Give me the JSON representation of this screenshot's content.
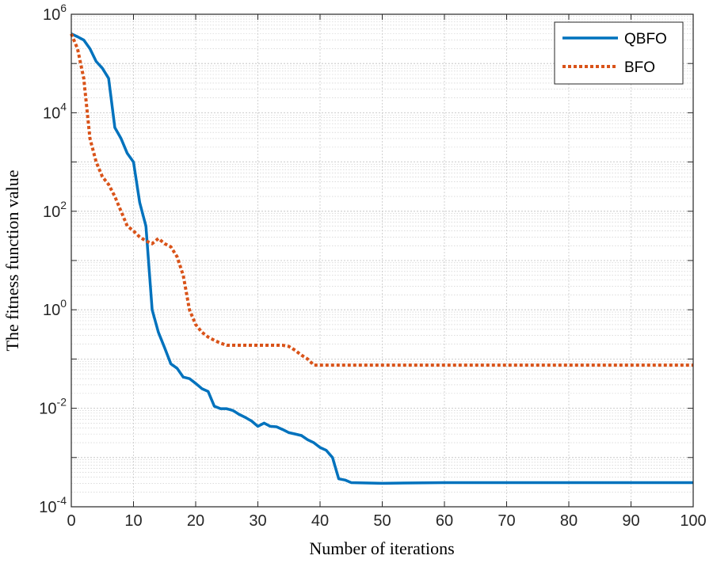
{
  "chart_data": {
    "type": "line",
    "title": "",
    "xlabel": "Number of iterations",
    "ylabel": "The fitness function value",
    "xlim": [
      0,
      100
    ],
    "ylim": [
      0.0001,
      1000000
    ],
    "yscale": "log",
    "grid": true,
    "minor_grid": true,
    "legend_position": "top-right",
    "x_ticks": [
      0,
      10,
      20,
      30,
      40,
      50,
      60,
      70,
      80,
      90,
      100
    ],
    "y_ticks": [
      {
        "base": "10",
        "exp": "-4",
        "value": 0.0001
      },
      {
        "base": "10",
        "exp": "-2",
        "value": 0.01
      },
      {
        "base": "10",
        "exp": "0",
        "value": 1
      },
      {
        "base": "10",
        "exp": "2",
        "value": 100
      },
      {
        "base": "10",
        "exp": "4",
        "value": 10000
      },
      {
        "base": "10",
        "exp": "6",
        "value": 1000000
      }
    ],
    "series": [
      {
        "name": "QBFO",
        "color": "#0072BD",
        "style": "solid",
        "x": [
          0,
          1,
          2,
          3,
          4,
          5,
          6,
          7,
          8,
          9,
          10,
          11,
          12,
          13,
          14,
          15,
          16,
          17,
          18,
          19,
          20,
          21,
          22,
          23,
          24,
          25,
          26,
          27,
          28,
          29,
          30,
          31,
          32,
          33,
          34,
          35,
          36,
          37,
          38,
          39,
          40,
          41,
          42,
          43,
          44,
          45,
          50,
          60,
          70,
          80,
          90,
          100
        ],
        "y": [
          400000,
          350000,
          300000,
          200000,
          110000,
          80000,
          50000,
          5000,
          3000,
          1500,
          1000,
          150,
          50,
          1,
          0.35,
          0.17,
          0.08,
          0.065,
          0.043,
          0.04,
          0.032,
          0.025,
          0.022,
          0.011,
          0.0098,
          0.0098,
          0.009,
          0.0075,
          0.0065,
          0.0055,
          0.0043,
          0.005,
          0.0043,
          0.0042,
          0.0037,
          0.0032,
          0.003,
          0.0028,
          0.0023,
          0.002,
          0.0016,
          0.0014,
          0.001,
          0.00037,
          0.00035,
          0.00031,
          0.0003,
          0.00031,
          0.00031,
          0.00031,
          0.00031,
          0.00031
        ]
      },
      {
        "name": "BFO",
        "color": "#D95319",
        "style": "dotted",
        "x": [
          0,
          1,
          2,
          3,
          4,
          5,
          6,
          7,
          8,
          9,
          10,
          11,
          12,
          13,
          14,
          15,
          16,
          17,
          18,
          19,
          20,
          21,
          22,
          23,
          24,
          25,
          30,
          34,
          35,
          36,
          37,
          38,
          39,
          40,
          50,
          60,
          70,
          80,
          90,
          100
        ],
        "y": [
          400000,
          200000,
          50000,
          3000,
          1000,
          500,
          350,
          200,
          100,
          50,
          40,
          30,
          25,
          22,
          28,
          22,
          19,
          12,
          5,
          1,
          0.5,
          0.35,
          0.28,
          0.24,
          0.21,
          0.19,
          0.19,
          0.19,
          0.18,
          0.15,
          0.12,
          0.1,
          0.075,
          0.075,
          0.075,
          0.075,
          0.075,
          0.075,
          0.075,
          0.075
        ]
      }
    ]
  }
}
